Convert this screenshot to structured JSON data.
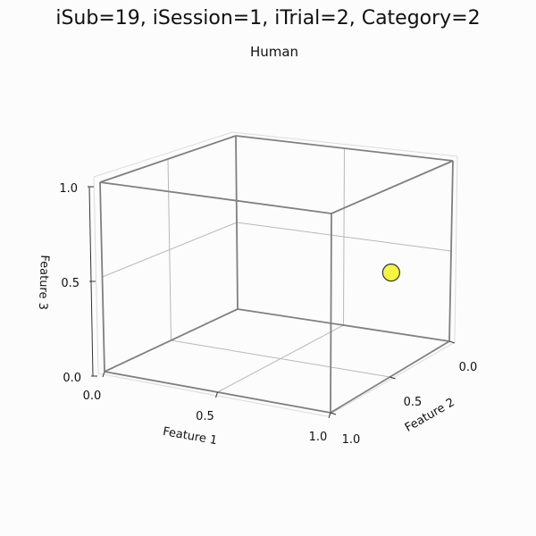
{
  "figure": {
    "title": "iSub=19, iSession=1, iTrial=2, Category=2",
    "subtitle": "Human"
  },
  "chart_data": {
    "type": "scatter",
    "projection": "3d",
    "title": "Human",
    "xlabel": "Feature 1",
    "ylabel": "Feature 2",
    "zlabel": "Feature 3",
    "xlim": [
      0,
      1
    ],
    "ylim": [
      0,
      1
    ],
    "zlim": [
      0,
      1
    ],
    "xticks": [
      "0.0",
      "0.5",
      "1.0"
    ],
    "yticks": [
      "0.0",
      "0.5",
      "1.0"
    ],
    "zticks": [
      "0.0",
      "0.5",
      "1.0"
    ],
    "grid": true,
    "series": [
      {
        "points": [
          {
            "x": 1.0,
            "y": 0.5,
            "z": 0.55
          }
        ],
        "color": "#f5f542",
        "edgecolor": "#333333"
      }
    ]
  }
}
